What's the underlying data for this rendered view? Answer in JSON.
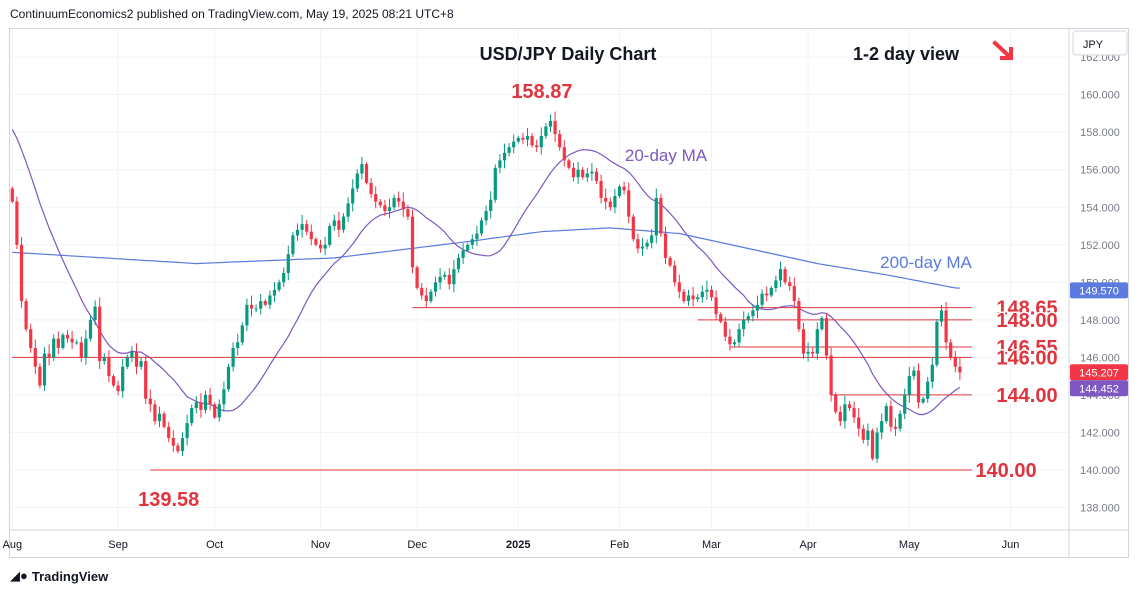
{
  "header": {
    "publish_line": "ContinuumEconomics2 published on TradingView.com, May 19, 2025 08:21 UTC+8"
  },
  "footer": {
    "brand": "TradingView"
  },
  "colors": {
    "up": "#089981",
    "down": "#f23645",
    "ma20": "#7e57c2",
    "ma200": "#5b7be0",
    "level": "#e0343e",
    "arrow": "#f23645"
  },
  "chart_data": {
    "type": "candlestick",
    "title": "USD/JPY Daily Chart",
    "subtitle": "1-2 day view",
    "currency": "JPY",
    "y_range": [
      136.8,
      163.5
    ],
    "y_ticks": [
      "138.000",
      "140.000",
      "142.000",
      "144.000",
      "146.000",
      "148.000",
      "150.000",
      "152.000",
      "154.000",
      "156.000",
      "158.000",
      "160.000",
      "162.000"
    ],
    "x_ticks": [
      {
        "label": "Aug",
        "bar": 0
      },
      {
        "label": "Sep",
        "bar": 23
      },
      {
        "label": "Oct",
        "bar": 44
      },
      {
        "label": "Nov",
        "bar": 67
      },
      {
        "label": "Dec",
        "bar": 88
      },
      {
        "label": "2025",
        "bar": 110
      },
      {
        "label": "Feb",
        "bar": 132
      },
      {
        "label": "Mar",
        "bar": 152
      },
      {
        "label": "Apr",
        "bar": 173
      },
      {
        "label": "May",
        "bar": 195
      },
      {
        "label": "Jun",
        "bar": 217
      }
    ],
    "bars_total": 230,
    "closes": [
      154.3,
      152.0,
      149.0,
      147.5,
      146.5,
      145.5,
      144.5,
      146.2,
      146.0,
      147.0,
      146.5,
      147.2,
      147.0,
      146.8,
      146.8,
      146.0,
      147.0,
      148.0,
      148.7,
      145.8,
      146.0,
      145.0,
      144.5,
      144.2,
      145.5,
      146.0,
      146.3,
      145.5,
      145.8,
      143.8,
      143.5,
      142.6,
      143.0,
      142.3,
      141.7,
      141.3,
      141.0,
      141.7,
      142.5,
      143.3,
      143.6,
      143.2,
      144.0,
      143.5,
      142.8,
      143.5,
      144.3,
      145.5,
      146.5,
      146.8,
      147.7,
      148.8,
      148.6,
      148.6,
      149.0,
      148.8,
      149.3,
      149.6,
      150.0,
      150.5,
      151.5,
      152.5,
      152.8,
      153.1,
      152.7,
      152.3,
      152.0,
      151.8,
      152.0,
      153.0,
      153.3,
      152.8,
      153.5,
      154.2,
      155.0,
      155.8,
      156.3,
      155.3,
      154.7,
      154.3,
      154.1,
      153.8,
      154.0,
      154.5,
      154.3,
      153.9,
      153.5,
      150.8,
      149.7,
      149.3,
      149.0,
      149.5,
      150.0,
      150.3,
      150.4,
      149.9,
      150.7,
      151.3,
      151.7,
      152.0,
      152.3,
      152.6,
      153.3,
      153.8,
      154.4,
      156.1,
      156.5,
      156.9,
      157.2,
      157.5,
      157.7,
      157.6,
      157.8,
      157.3,
      157.2,
      157.8,
      158.3,
      158.6,
      157.9,
      157.2,
      156.5,
      156.1,
      155.6,
      156.0,
      155.6,
      155.8,
      155.9,
      155.4,
      154.5,
      154.3,
      154.0,
      154.6,
      155.1,
      154.9,
      153.5,
      152.3,
      151.8,
      151.9,
      152.1,
      152.5,
      154.5,
      152.6,
      151.3,
      150.9,
      150.0,
      149.5,
      149.0,
      149.3,
      149.1,
      149.2,
      149.5,
      149.6,
      149.2,
      148.3,
      147.9,
      147.1,
      146.7,
      146.8,
      147.5,
      148.0,
      148.2,
      148.5,
      148.8,
      149.4,
      149.3,
      149.7,
      150.1,
      150.7,
      150.0,
      149.8,
      149.0,
      147.5,
      146.2,
      146.3,
      146.2,
      147.5,
      148.1,
      146.1,
      144.0,
      143.1,
      142.6,
      143.5,
      143.3,
      142.8,
      142.2,
      141.6,
      142.1,
      140.6,
      142.0,
      142.6,
      143.4,
      142.3,
      142.2,
      143.0,
      144.0,
      145.0,
      145.3,
      143.6,
      143.8,
      144.7,
      145.6,
      147.9,
      148.5,
      146.8,
      146.0,
      145.5,
      145.2
    ],
    "series": [
      {
        "name": "20-day MA"
      },
      {
        "name": "200-day MA"
      }
    ],
    "levels": [
      {
        "label": "148.65",
        "value": 148.65,
        "from_bar": 87
      },
      {
        "label": "148.00",
        "value": 148.0,
        "from_bar": 149
      },
      {
        "label": "146.55",
        "value": 146.55,
        "from_bar": 156
      },
      {
        "label": "146.00",
        "value": 146.0,
        "from_bar": 0
      },
      {
        "label": "144.00",
        "value": 144.0,
        "from_bar": 178
      },
      {
        "label": "140.00",
        "value": 140.0,
        "from_bar": 30
      }
    ],
    "annotations": [
      {
        "label": "158.87",
        "value": 158.87,
        "bar": 116
      },
      {
        "label": "139.58",
        "value": 139.58,
        "bar": 34
      }
    ],
    "price_tags": [
      {
        "label": "149.570",
        "value": 149.57,
        "kind": "ma200"
      },
      {
        "label": "145.207",
        "value": 145.207,
        "kind": "last"
      },
      {
        "label": "144.452",
        "value": 144.452,
        "kind": "ma20"
      }
    ]
  }
}
